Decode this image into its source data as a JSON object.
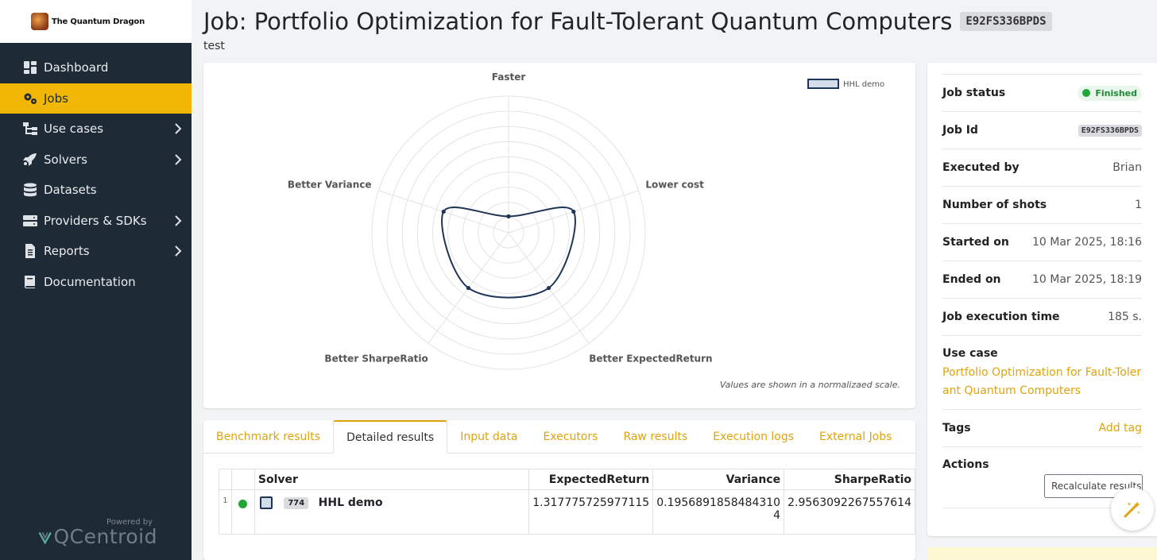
{
  "brand": {
    "name": "The Quantum Dragon"
  },
  "sidebar": {
    "items": [
      {
        "label": "Dashboard",
        "icon": "dashboard-icon",
        "active": false,
        "chevron": false
      },
      {
        "label": "Jobs",
        "icon": "gears-icon",
        "active": true,
        "chevron": false
      },
      {
        "label": "Use cases",
        "icon": "sitemap-icon",
        "active": false,
        "chevron": true
      },
      {
        "label": "Solvers",
        "icon": "rocket-icon",
        "active": false,
        "chevron": true
      },
      {
        "label": "Datasets",
        "icon": "database-icon",
        "active": false,
        "chevron": false
      },
      {
        "label": "Providers & SDKs",
        "icon": "server-icon",
        "active": false,
        "chevron": true
      },
      {
        "label": "Reports",
        "icon": "file-icon",
        "active": false,
        "chevron": true
      },
      {
        "label": "Documentation",
        "icon": "book-icon",
        "active": false,
        "chevron": false
      }
    ],
    "powered_by": "Powered by",
    "vendor": "QCentroid"
  },
  "header": {
    "title": "Job: Portfolio Optimization for Fault-Tolerant Quantum Computers",
    "job_badge": "E92FS336BPDS",
    "subtitle": "test"
  },
  "chart": {
    "note": "Values are shown in a normalizaed scale.",
    "legend_label": "HHL demo"
  },
  "chart_data": {
    "type": "radar",
    "axes": [
      "Faster",
      "Lower cost",
      "Better ExpectedReturn",
      "Better SharpeRatio",
      "Better Variance"
    ],
    "series": [
      {
        "name": "HHL demo",
        "values": [
          0.12,
          0.5,
          0.5,
          0.5,
          0.5
        ],
        "color": "#1d3557"
      }
    ],
    "range": [
      0,
      1
    ],
    "rings": 9,
    "legend": "top-right"
  },
  "tabs": [
    {
      "label": "Benchmark results",
      "active": false
    },
    {
      "label": "Detailed results",
      "active": true
    },
    {
      "label": "Input data",
      "active": false
    },
    {
      "label": "Executors",
      "active": false
    },
    {
      "label": "Raw results",
      "active": false
    },
    {
      "label": "Execution logs",
      "active": false
    },
    {
      "label": "External Jobs",
      "active": false
    }
  ],
  "results_table": {
    "headers": {
      "solver": "Solver",
      "expected_return": "ExpectedReturn",
      "variance": "Variance",
      "sharpe_ratio": "SharpeRatio"
    },
    "rows": [
      {
        "index": "1",
        "status_color": "#1fa53a",
        "solver_id": "774",
        "solver": "HHL demo",
        "expected_return": "1.317775725977115",
        "variance_line1": "0.1956891858484310",
        "variance_line2": "4",
        "sharpe_ratio": "2.9563092267557614"
      }
    ]
  },
  "details": {
    "job_status": {
      "label": "Job status",
      "value": "Finished"
    },
    "job_id": {
      "label": "Job Id",
      "value": "E92FS336BPDS"
    },
    "executed_by": {
      "label": "Executed by",
      "value": "Brian"
    },
    "shots": {
      "label": "Number of shots",
      "value": "1"
    },
    "started_on": {
      "label": "Started on",
      "value": "10 Mar 2025, 18:16"
    },
    "ended_on": {
      "label": "Ended on",
      "value": "10 Mar 2025, 18:19"
    },
    "exec_time": {
      "label": "Job execution time",
      "value": "185 s."
    },
    "use_case": {
      "label": "Use case",
      "value": "Portfolio Optimization for Fault-Tolerant Quantum Computers"
    },
    "tags": {
      "label": "Tags",
      "value": "Add tag"
    },
    "actions": {
      "label": "Actions",
      "button": "Recalculate results"
    }
  }
}
